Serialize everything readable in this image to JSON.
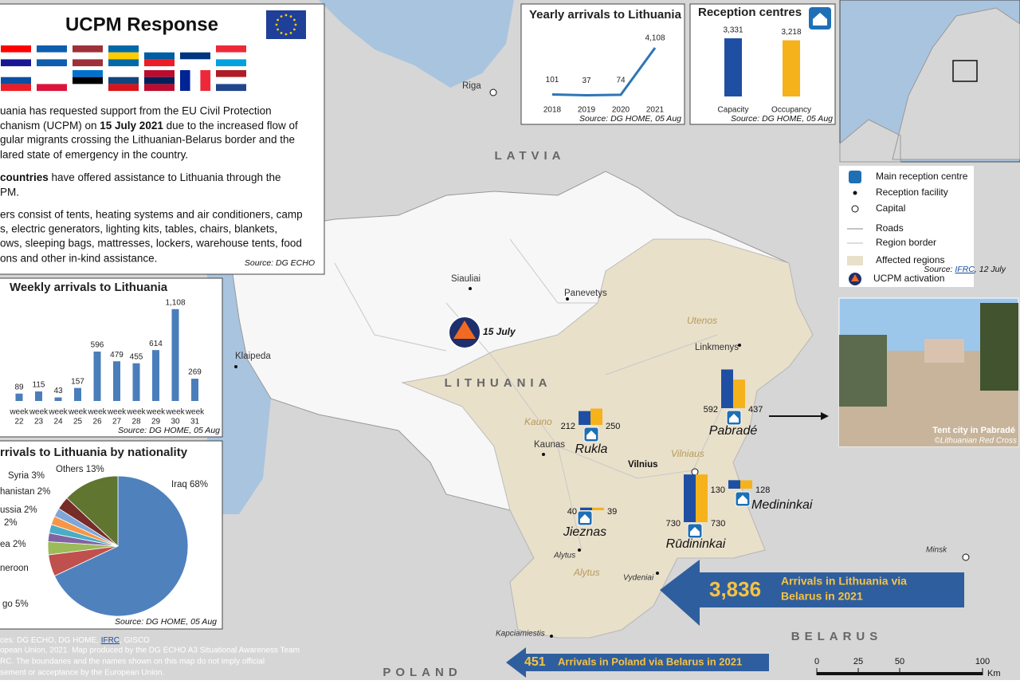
{
  "ucpm": {
    "title": "UCPM Response",
    "p1": [
      "uania has requested support from the EU Civil Protection",
      "chanism (UCPM) on ",
      "15 July 2021",
      " due to the increased flow of",
      "gular migrants crossing the Lithuanian-Belarus border and the",
      "lared state of emergency in the country."
    ],
    "p2": [
      "countries",
      " have offered assistance to Lithuania through the",
      "PM."
    ],
    "p3": [
      "ers consist of tents, heating systems and air conditioners, camp",
      "s, electric generators, lighting kits, tables, chairs, blankets,",
      "ows, sleeping bags, mattresses, lockers, warehouse tents, food",
      "ons and other in-kind assistance."
    ],
    "source": "Source: DG ECHO"
  },
  "yearly": {
    "type": "line",
    "title": "Yearly arrivals to Lithuania",
    "categories": [
      "2018",
      "2019",
      "2020",
      "2021"
    ],
    "values": [
      101,
      37,
      74,
      4108
    ],
    "value_labels": [
      "101",
      "37",
      "74",
      "4,108"
    ],
    "color": "#2e75b6",
    "source": "Source: DG HOME, 05 Aug"
  },
  "reception": {
    "type": "bar",
    "title": "Reception centres",
    "categories": [
      "Capacity",
      "Occupancy"
    ],
    "values": [
      3331,
      3218
    ],
    "value_labels": [
      "3,331",
      "3,218"
    ],
    "colors": [
      "#1f4fa3",
      "#f6b21b"
    ],
    "source": "Source: DG HOME, 05 Aug"
  },
  "weekly": {
    "type": "bar",
    "title": "Weekly arrivals to Lithuania",
    "categories": [
      [
        "week",
        "22"
      ],
      [
        "week",
        "23"
      ],
      [
        "week",
        "24"
      ],
      [
        "week",
        "25"
      ],
      [
        "week",
        "26"
      ],
      [
        "week",
        "27"
      ],
      [
        "week",
        "28"
      ],
      [
        "week",
        "29"
      ],
      [
        "week",
        "30"
      ],
      [
        "week",
        "31"
      ]
    ],
    "values": [
      89,
      115,
      43,
      157,
      596,
      479,
      455,
      614,
      1108,
      269
    ],
    "value_labels": [
      "89",
      "115",
      "43",
      "157",
      "596",
      "479",
      "455",
      "614",
      "1,108",
      "269"
    ],
    "color": "#4a7ebb",
    "source": "Source: DG HOME, 05 Aug"
  },
  "nationality": {
    "type": "pie",
    "title": "rrivals to Lithuania by nationality",
    "labels": [
      "Iraq 68%",
      "go 5%",
      "neroon",
      "ea 2%",
      "2%",
      "ussia 2%",
      "hanistan 2%",
      "Syria 3%",
      "Others 13%"
    ],
    "values": [
      68,
      5,
      3,
      2,
      2,
      2,
      2,
      3,
      13
    ],
    "colors": [
      "#4f81bd",
      "#c0504d",
      "#9bbb59",
      "#8064a2",
      "#4bacc6",
      "#f79646",
      "#7ea6d8",
      "#772c2a",
      "#5f7530"
    ],
    "source": "Source: DG HOME, 05 Aug"
  },
  "map": {
    "countries": [
      "LATVIA",
      "LITHUANIA",
      "BELARUS",
      "POLAND"
    ],
    "regions": [
      "Utenos",
      "Kauno",
      "Vilniaus",
      "Alytus"
    ],
    "places": [
      "Riga",
      "Siauliai",
      "Panevetys",
      "Klaipeda",
      "Linkmenys",
      "Kaunas",
      "Vilnius",
      "Alytus",
      "Vydeniai",
      "Kapciamiestis",
      "Minsk"
    ],
    "activation": "15 July"
  },
  "centres": {
    "names": [
      "Rukla",
      "Pabradé",
      "Jieznas",
      "Rūdininkai",
      "Medininkai"
    ],
    "capacity": [
      212,
      592,
      40,
      730,
      130
    ],
    "occupancy": [
      250,
      437,
      39,
      730,
      128
    ],
    "colors": [
      "#1f4fa3",
      "#f6b21b"
    ]
  },
  "legend": {
    "items": [
      "Main reception centre",
      "Reception facility",
      "Capital",
      "Roads",
      "Region border",
      "Affected regions"
    ],
    "source": [
      "Source: ",
      "IFRC",
      ", 12 July"
    ],
    "activation": "UCPM activation"
  },
  "photo": {
    "caption": "Tent city in Pabradé",
    "credit": "©Lithuanian Red Cross"
  },
  "arrows": [
    {
      "value": "3,836",
      "text": [
        "Arrivals in Lithuania via",
        "Belarus in 2021"
      ]
    },
    {
      "value": "451",
      "text": [
        "Arrivals in Poland via Belarus in 2021"
      ]
    }
  ],
  "footer": {
    "line1": [
      "ces: DG ECHO, DG HOME, ",
      "IFRC",
      ", GISCO"
    ],
    "lines": [
      "opean Union, 2021. Map produced by the DG ECHO A3 Situational Awareness Team",
      "RC. The boundaries and the names shown on this map do not imply official",
      "sement or acceptance by the European Union."
    ]
  },
  "scale": {
    "ticks": [
      0,
      25,
      50,
      100
    ],
    "unit": "Km"
  }
}
